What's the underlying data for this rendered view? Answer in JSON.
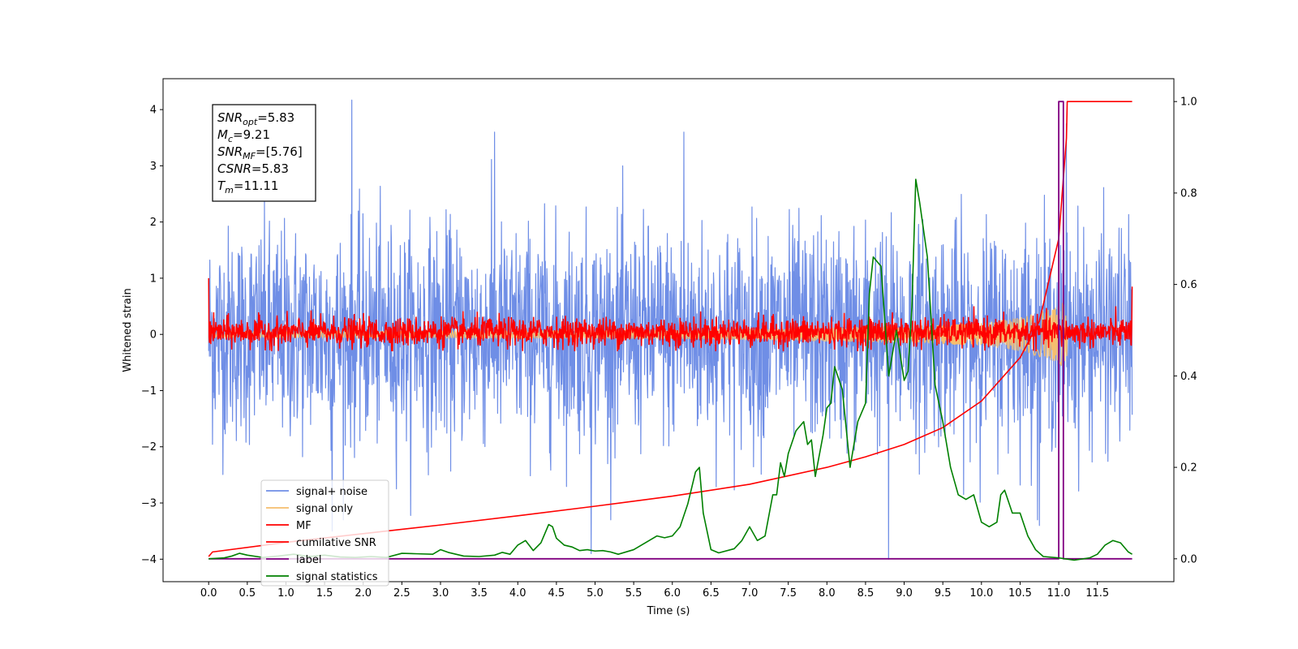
{
  "chart_data": {
    "type": "line",
    "xlabel": "Time (s)",
    "ylabel": "Whitened strain",
    "xlim": [
      -0.59,
      12.49
    ],
    "ylim": [
      -4.4,
      4.55
    ],
    "y2lim": [
      -0.05,
      1.05
    ],
    "x_ticks": [
      0.0,
      0.5,
      1.0,
      1.5,
      2.0,
      2.5,
      3.0,
      3.5,
      4.0,
      4.5,
      5.0,
      5.5,
      6.0,
      6.5,
      7.0,
      7.5,
      8.0,
      8.5,
      9.0,
      9.5,
      10.0,
      10.5,
      11.0,
      11.5
    ],
    "x_tick_labels": [
      "0.0",
      "0.5",
      "1.0",
      "1.5",
      "2.0",
      "2.5",
      "3.0",
      "3.5",
      "4.0",
      "4.5",
      "5.0",
      "5.5",
      "6.0",
      "6.5",
      "7.0",
      "7.5",
      "8.0",
      "8.5",
      "9.0",
      "9.5",
      "10.0",
      "10.5",
      "11.0",
      "11.5"
    ],
    "y_ticks": [
      -4,
      -3,
      -2,
      -1,
      0,
      1,
      2,
      3,
      4
    ],
    "y_tick_labels": [
      "−4",
      "−3",
      "−2",
      "−1",
      "0",
      "1",
      "2",
      "3",
      "4"
    ],
    "y2_ticks": [
      0.0,
      0.2,
      0.4,
      0.6,
      0.8,
      1.0
    ],
    "y2_tick_labels": [
      "0.0",
      "0.2",
      "0.4",
      "0.6",
      "0.8",
      "1.0"
    ],
    "grid": false,
    "legend_position": "lower-left",
    "annotation": {
      "lines": [
        {
          "sym": "SNR",
          "sub": "opt",
          "rest": "=5.83"
        },
        {
          "sym": "M",
          "sub": "c",
          "rest": "=9.21"
        },
        {
          "sym": "SNR",
          "sub": "MF",
          "rest": "=[5.76]"
        },
        {
          "sym": "CSNR",
          "sub": "",
          "rest": "=5.83"
        },
        {
          "sym": "T",
          "sub": "m",
          "rest": "=11.11"
        }
      ]
    },
    "series": [
      {
        "name": "signal+ noise",
        "color": "#6f8ee6",
        "axis": "left",
        "description": "Gaussian whitened noise, roughly within ±2.5 with spikes to about ±4.2",
        "x_range": [
          0.0,
          11.95
        ],
        "y_range": [
          -4.0,
          4.17
        ],
        "spikes": [
          [
            1.85,
            4.17
          ],
          [
            3.7,
            3.6
          ],
          [
            6.15,
            3.6
          ],
          [
            11.1,
            3.75
          ],
          [
            8.8,
            -4.0
          ],
          [
            4.95,
            -3.9
          ],
          [
            1.6,
            -3.5
          ],
          [
            10.75,
            -3.4
          ]
        ]
      },
      {
        "name": "signal only",
        "color": "#f5be6e",
        "axis": "left",
        "description": "chirp signal near zero, growing to about ±0.75 at merger",
        "chirp": [
          [
            0.0,
            0.05
          ],
          [
            6.0,
            0.08
          ],
          [
            9.0,
            0.15
          ],
          [
            10.0,
            0.2
          ],
          [
            10.5,
            0.3
          ],
          [
            11.0,
            0.5
          ],
          [
            11.11,
            0.75
          ]
        ],
        "x_range": [
          0.0,
          11.11
        ]
      },
      {
        "name": "MF",
        "color": "#ff0000",
        "axis": "left",
        "description": "matched filter output, noisy band roughly between -0.25 and +0.35",
        "x_range": [
          0.0,
          11.95
        ],
        "y_range": [
          -0.3,
          1.0
        ],
        "start_value": 1.0,
        "end_value": 0.85
      },
      {
        "name": "cumilative SNR",
        "color": "#ff0000",
        "axis": "right",
        "x": [
          0.0,
          0.05,
          1.0,
          2.0,
          3.0,
          4.0,
          5.0,
          6.0,
          7.0,
          8.0,
          8.5,
          9.0,
          9.5,
          10.0,
          10.5,
          10.75,
          11.0,
          11.1,
          11.11,
          11.95
        ],
        "y": [
          0.005,
          0.015,
          0.036,
          0.055,
          0.074,
          0.094,
          0.115,
          0.137,
          0.163,
          0.2,
          0.223,
          0.25,
          0.287,
          0.345,
          0.44,
          0.52,
          0.7,
          0.92,
          1.0,
          1.0
        ]
      },
      {
        "name": "label",
        "color": "#800080",
        "axis": "right",
        "x": [
          0.0,
          11.0,
          11.0,
          11.06,
          11.06,
          11.13,
          11.13,
          11.95
        ],
        "y": [
          0.0,
          0.0,
          1.0,
          1.0,
          0.0,
          0.0,
          0.0,
          0.0
        ]
      },
      {
        "name": "signal statistics",
        "color": "#008000",
        "axis": "right",
        "x": [
          0.0,
          0.2,
          0.3,
          0.4,
          0.5,
          0.7,
          0.9,
          1.1,
          1.3,
          1.5,
          1.7,
          1.9,
          2.1,
          2.3,
          2.5,
          2.7,
          2.9,
          3.0,
          3.1,
          3.3,
          3.5,
          3.7,
          3.8,
          3.9,
          4.0,
          4.1,
          4.2,
          4.3,
          4.4,
          4.45,
          4.5,
          4.6,
          4.7,
          4.8,
          4.9,
          5.0,
          5.1,
          5.2,
          5.3,
          5.5,
          5.7,
          5.8,
          5.9,
          6.0,
          6.1,
          6.2,
          6.3,
          6.35,
          6.4,
          6.5,
          6.6,
          6.8,
          6.9,
          7.0,
          7.1,
          7.2,
          7.3,
          7.35,
          7.4,
          7.45,
          7.5,
          7.6,
          7.7,
          7.75,
          7.8,
          7.85,
          7.95,
          8.0,
          8.05,
          8.1,
          8.2,
          8.3,
          8.4,
          8.5,
          8.55,
          8.6,
          8.7,
          8.8,
          8.9,
          9.0,
          9.05,
          9.1,
          9.15,
          9.2,
          9.25,
          9.3,
          9.4,
          9.45,
          9.5,
          9.6,
          9.7,
          9.8,
          9.9,
          10.0,
          10.1,
          10.2,
          10.25,
          10.3,
          10.4,
          10.5,
          10.6,
          10.7,
          10.8,
          11.0,
          11.2,
          11.4,
          11.5,
          11.6,
          11.7,
          11.8,
          11.9,
          11.95
        ],
        "y": [
          0.0,
          0.002,
          0.006,
          0.012,
          0.008,
          0.003,
          0.006,
          0.01,
          0.005,
          0.008,
          0.004,
          0.003,
          0.005,
          0.003,
          0.012,
          0.011,
          0.01,
          0.02,
          0.014,
          0.006,
          0.005,
          0.008,
          0.014,
          0.01,
          0.03,
          0.04,
          0.018,
          0.035,
          0.075,
          0.07,
          0.045,
          0.03,
          0.026,
          0.018,
          0.02,
          0.017,
          0.018,
          0.015,
          0.01,
          0.02,
          0.04,
          0.05,
          0.046,
          0.05,
          0.07,
          0.12,
          0.19,
          0.2,
          0.1,
          0.02,
          0.013,
          0.022,
          0.04,
          0.07,
          0.04,
          0.05,
          0.14,
          0.14,
          0.21,
          0.18,
          0.23,
          0.28,
          0.3,
          0.25,
          0.26,
          0.18,
          0.27,
          0.33,
          0.34,
          0.42,
          0.37,
          0.2,
          0.3,
          0.34,
          0.58,
          0.66,
          0.64,
          0.4,
          0.5,
          0.39,
          0.41,
          0.55,
          0.83,
          0.78,
          0.72,
          0.66,
          0.38,
          0.34,
          0.3,
          0.2,
          0.14,
          0.13,
          0.14,
          0.08,
          0.07,
          0.08,
          0.14,
          0.15,
          0.1,
          0.1,
          0.05,
          0.02,
          0.005,
          0.002,
          -0.003,
          0.002,
          0.01,
          0.03,
          0.04,
          0.035,
          0.015,
          0.01
        ]
      }
    ]
  }
}
